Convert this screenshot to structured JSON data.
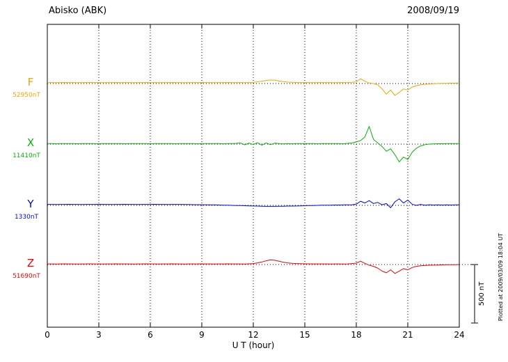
{
  "header": {
    "station": "Abisko (ABK)",
    "date": "2008/09/19"
  },
  "chart_data": {
    "type": "line",
    "title": "Abisko (ABK)",
    "date": "2008/09/19",
    "xlabel": "U T (hour)",
    "footer_note": "Plotted at 2009/03/09 18:04 UT",
    "x_start": 0,
    "x_end": 24,
    "x_step": 0.25,
    "x_ticks": [
      0,
      3,
      6,
      9,
      12,
      15,
      18,
      21,
      24
    ],
    "grid": "dotted vertical lines at interior x ticks, dotted horizontal baseline per trace",
    "legend_position": "left of axis, one colored letter + baseline value per trace",
    "scale_bar": {
      "label": "500 nT",
      "nT": 500
    },
    "units": "nT offset from baseline value",
    "series": [
      {
        "name": "F",
        "baseline_label": "52950nT",
        "color": "#f0a500",
        "values": [
          8,
          8,
          7,
          8,
          9,
          8,
          8,
          7,
          8,
          8,
          9,
          8,
          8,
          7,
          8,
          8,
          9,
          8,
          8,
          8,
          7,
          8,
          8,
          9,
          8,
          8,
          7,
          8,
          8,
          9,
          8,
          8,
          7,
          8,
          8,
          8,
          9,
          8,
          8,
          7,
          8,
          8,
          9,
          8,
          8,
          8,
          7,
          8,
          10,
          14,
          20,
          26,
          30,
          28,
          22,
          16,
          12,
          10,
          9,
          8,
          8,
          8,
          7,
          8,
          8,
          8,
          8,
          7,
          8,
          8,
          8,
          10,
          14,
          40,
          20,
          5,
          0,
          -10,
          -45,
          -90,
          -55,
          -100,
          -75,
          -45,
          -55,
          -30,
          -18,
          -10,
          -6,
          -4,
          -2,
          0,
          2,
          2,
          3,
          3,
          4
        ]
      },
      {
        "name": "X",
        "baseline_label": "11410nT",
        "color": "#00b400",
        "values": [
          4,
          4,
          3,
          4,
          5,
          4,
          4,
          3,
          4,
          5,
          4,
          4,
          3,
          4,
          4,
          5,
          4,
          4,
          3,
          4,
          4,
          5,
          4,
          4,
          3,
          4,
          5,
          4,
          4,
          4,
          3,
          4,
          5,
          4,
          4,
          3,
          4,
          4,
          5,
          4,
          4,
          3,
          4,
          4,
          6,
          10,
          -6,
          8,
          -4,
          12,
          -8,
          10,
          -5,
          8,
          4,
          2,
          4,
          3,
          4,
          4,
          5,
          4,
          4,
          3,
          4,
          4,
          5,
          4,
          4,
          3,
          6,
          10,
          18,
          30,
          60,
          150,
          40,
          10,
          -20,
          -60,
          -40,
          -90,
          -150,
          -110,
          -130,
          -70,
          -35,
          -15,
          -5,
          0,
          2,
          3,
          3,
          4,
          4,
          4,
          4
        ]
      },
      {
        "name": "Y",
        "baseline_label": "1330nT",
        "color": "#0000ee",
        "values": [
          8,
          8,
          7,
          8,
          8,
          9,
          8,
          8,
          7,
          8,
          8,
          8,
          9,
          8,
          8,
          7,
          8,
          8,
          9,
          8,
          8,
          7,
          8,
          8,
          8,
          9,
          8,
          8,
          7,
          8,
          8,
          8,
          7,
          7,
          6,
          6,
          5,
          5,
          4,
          4,
          3,
          2,
          1,
          0,
          -1,
          -2,
          -3,
          -4,
          -5,
          -6,
          -7,
          -8,
          -8,
          -8,
          -7,
          -7,
          -6,
          -6,
          -5,
          -4,
          -3,
          -2,
          -1,
          0,
          1,
          2,
          2,
          3,
          3,
          4,
          4,
          5,
          10,
          35,
          20,
          40,
          15,
          25,
          5,
          15,
          -20,
          30,
          55,
          20,
          45,
          10,
          0,
          8,
          2,
          5,
          3,
          4,
          3,
          4,
          3,
          4,
          4
        ]
      },
      {
        "name": "Z",
        "baseline_label": "51690nT",
        "color": "#ee0000",
        "values": [
          5,
          5,
          4,
          5,
          6,
          5,
          5,
          4,
          5,
          5,
          6,
          5,
          5,
          4,
          5,
          5,
          6,
          5,
          5,
          5,
          4,
          5,
          5,
          6,
          5,
          5,
          4,
          5,
          5,
          6,
          5,
          5,
          4,
          5,
          5,
          5,
          6,
          5,
          5,
          4,
          5,
          5,
          6,
          5,
          5,
          5,
          4,
          6,
          8,
          14,
          22,
          32,
          40,
          36,
          28,
          20,
          14,
          10,
          8,
          7,
          6,
          6,
          5,
          5,
          5,
          5,
          4,
          5,
          5,
          4,
          5,
          8,
          12,
          28,
          10,
          -5,
          -15,
          -30,
          -55,
          -70,
          -45,
          -75,
          -55,
          -35,
          -45,
          -25,
          -15,
          -10,
          -8,
          -6,
          -5,
          -4,
          -3,
          -2,
          -2,
          -1,
          0
        ]
      }
    ]
  }
}
